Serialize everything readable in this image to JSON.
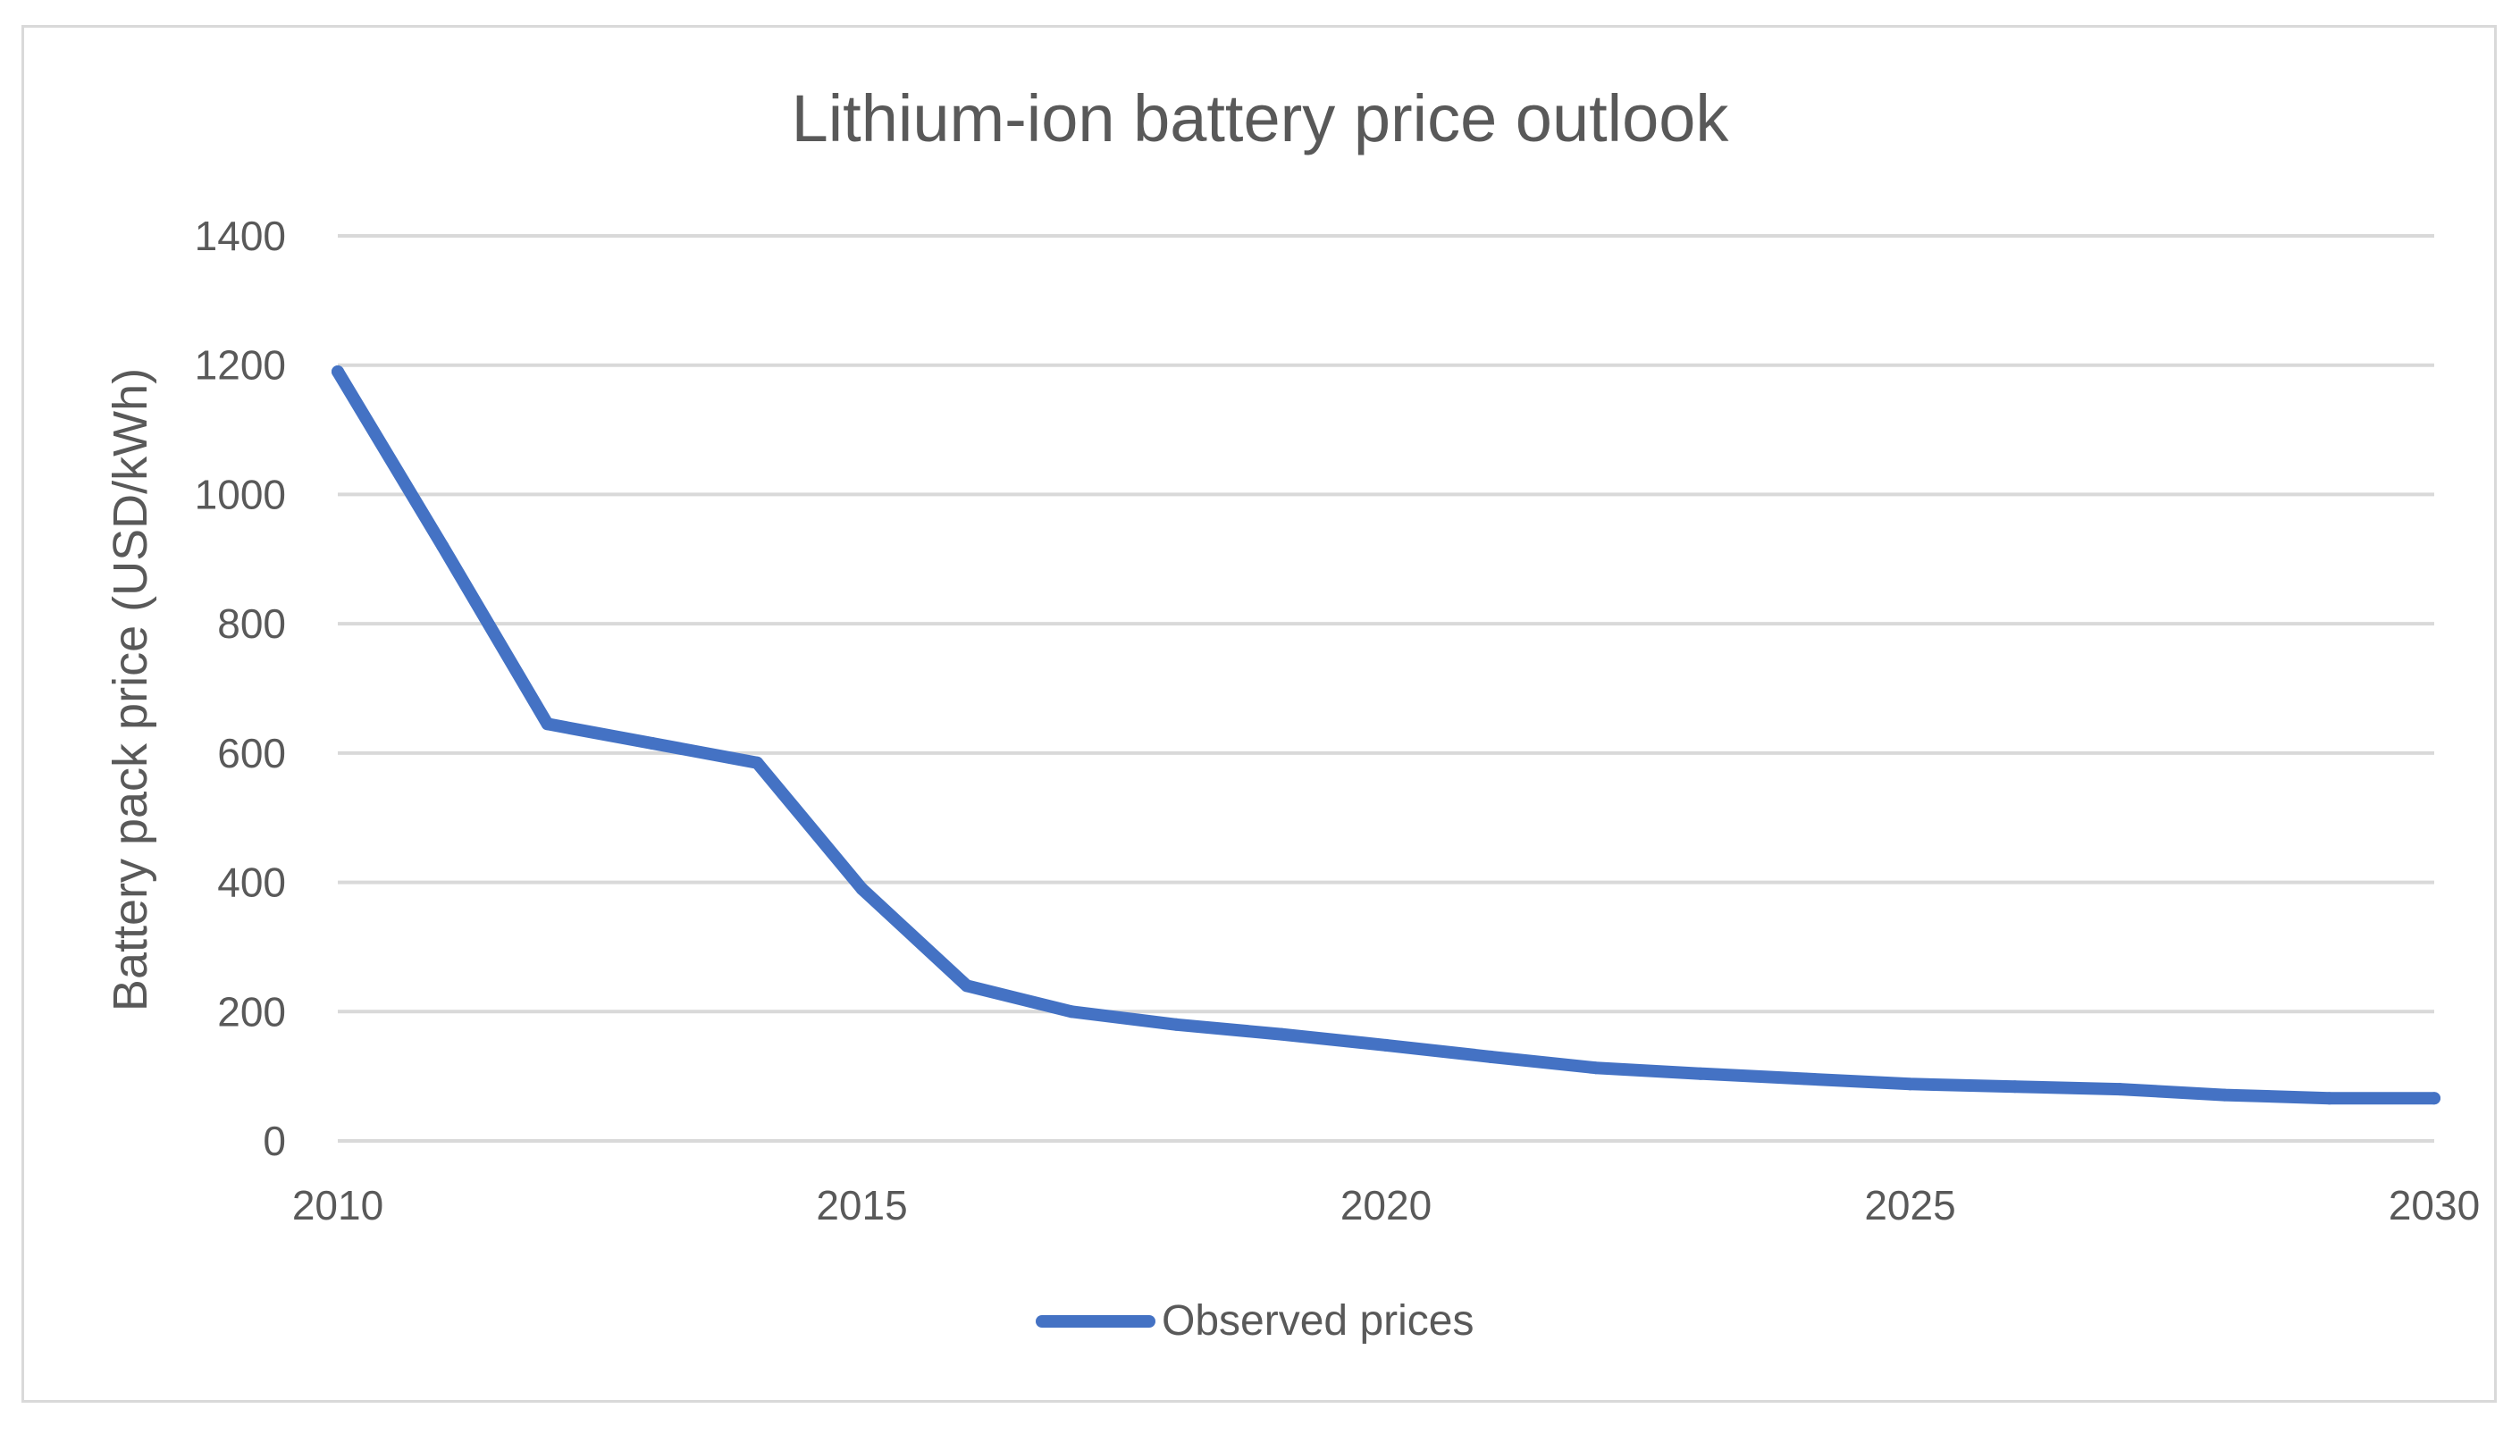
{
  "chart_data": {
    "type": "line",
    "title": "Lithium-ion battery price outlook",
    "xlabel": "",
    "ylabel": "Battery pack price (USD/kWh)",
    "xlim": [
      2010,
      2030
    ],
    "ylim": [
      0,
      1400
    ],
    "x_ticks": [
      "2010",
      "2015",
      "2020",
      "2025",
      "2030"
    ],
    "y_ticks": [
      "0",
      "200",
      "400",
      "600",
      "800",
      "1000",
      "1200",
      "1400"
    ],
    "grid": true,
    "legend_position": "bottom",
    "series": [
      {
        "name": "Observed prices",
        "color": "#4472c4",
        "x": [
          2010,
          2011,
          2012,
          2013,
          2014,
          2015,
          2016,
          2017,
          2018,
          2019,
          2020,
          2021,
          2022,
          2023,
          2024,
          2025,
          2026,
          2027,
          2028,
          2029,
          2030
        ],
        "y": [
          1190,
          920,
          645,
          615,
          585,
          390,
          240,
          200,
          180,
          165,
          148,
          130,
          113,
          104,
          96,
          88,
          84,
          80,
          71,
          66,
          66
        ]
      }
    ]
  }
}
